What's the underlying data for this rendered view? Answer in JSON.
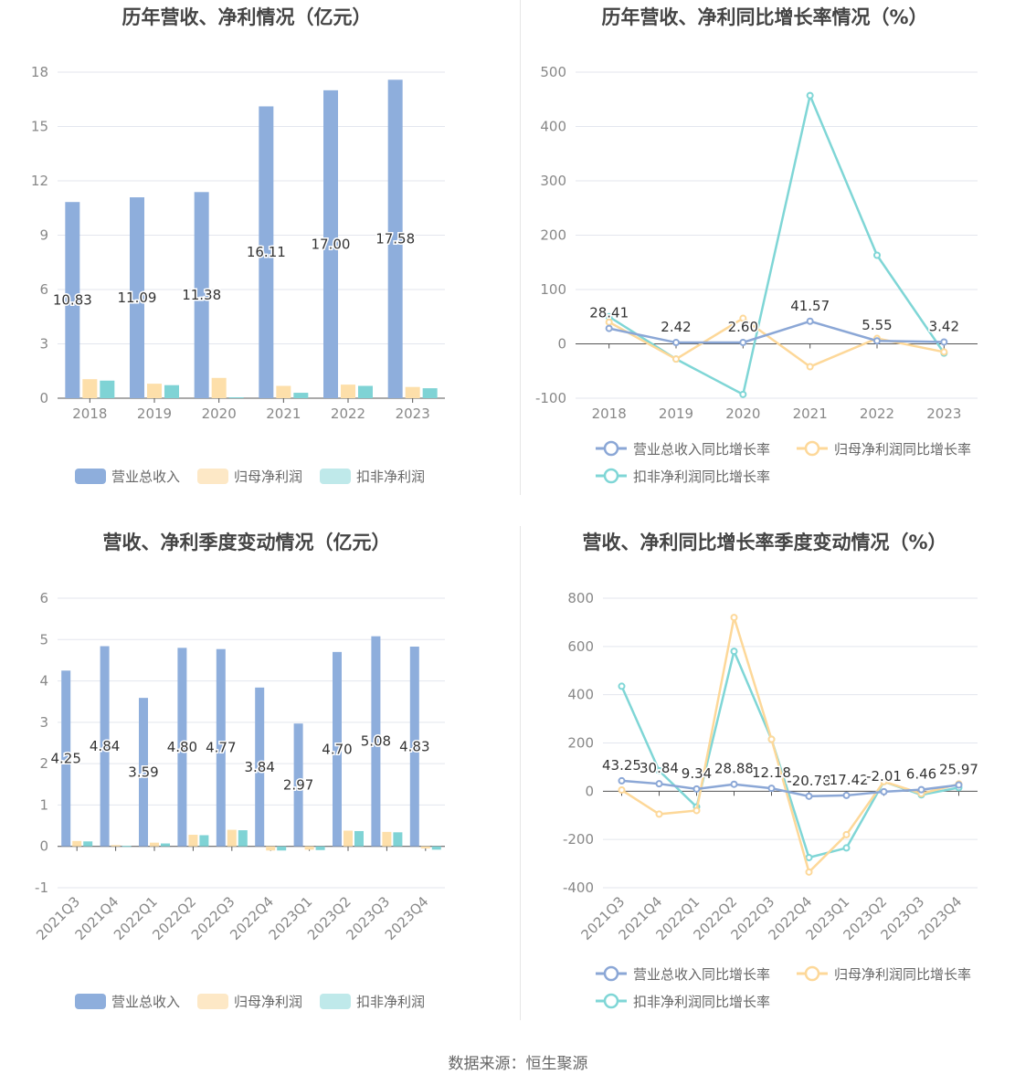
{
  "footer": {
    "source": "数据来源：恒生聚源"
  },
  "colors": {
    "revenue": "#8eaedc",
    "net_profit": "#fddfaa",
    "deducted_profit": "#7fd3d5",
    "revenue_line": "#8ba7d6",
    "net_line": "#fdd899",
    "deducted_line": "#7fd6d6"
  },
  "chart_data": [
    {
      "type": "bar",
      "title": "历年营收、净利情况（亿元）",
      "categories": [
        "2018",
        "2019",
        "2020",
        "2021",
        "2022",
        "2023"
      ],
      "ylim": [
        0,
        18
      ],
      "yticks": [
        0,
        3,
        6,
        9,
        12,
        15,
        18
      ],
      "legend_position": "bottom",
      "series": [
        {
          "name": "营业总收入",
          "values": [
            10.83,
            11.09,
            11.38,
            16.11,
            17.0,
            17.58
          ],
          "labels": [
            "10.83",
            "11.09",
            "11.38",
            "16.11",
            "17.00",
            "17.58"
          ]
        },
        {
          "name": "归母净利润",
          "values": [
            1.05,
            0.8,
            1.12,
            0.68,
            0.75,
            0.62
          ]
        },
        {
          "name": "扣非净利润",
          "values": [
            0.97,
            0.72,
            0.05,
            0.3,
            0.68,
            0.55
          ]
        }
      ]
    },
    {
      "type": "line",
      "title": "历年营收、净利同比增长率情况（%）",
      "categories": [
        "2018",
        "2019",
        "2020",
        "2021",
        "2022",
        "2023"
      ],
      "ylim": [
        -100,
        500
      ],
      "yticks": [
        -100,
        0,
        100,
        200,
        300,
        400,
        500
      ],
      "legend_position": "bottom",
      "series": [
        {
          "name": "营业总收入同比增长率",
          "values": [
            28.41,
            2.42,
            2.6,
            41.57,
            5.55,
            3.42
          ],
          "labels": [
            "28.41",
            "2.42",
            "2.60",
            "41.57",
            "5.55",
            "3.42"
          ]
        },
        {
          "name": "归母净利润同比增长率",
          "values": [
            40,
            -28,
            47,
            -42,
            10,
            -15
          ]
        },
        {
          "name": "扣非净利润同比增长率",
          "values": [
            50,
            -28,
            -93,
            457,
            163,
            -17
          ]
        }
      ]
    },
    {
      "type": "bar",
      "title": "营收、净利季度变动情况（亿元）",
      "categories": [
        "2021Q3",
        "2021Q4",
        "2022Q1",
        "2022Q2",
        "2022Q3",
        "2022Q4",
        "2023Q1",
        "2023Q2",
        "2023Q3",
        "2023Q4"
      ],
      "ylim": [
        -1,
        6
      ],
      "yticks": [
        -1,
        0,
        1,
        2,
        3,
        4,
        5,
        6
      ],
      "legend_position": "bottom",
      "series": [
        {
          "name": "营业总收入",
          "values": [
            4.25,
            4.84,
            3.59,
            4.8,
            4.77,
            3.84,
            2.97,
            4.7,
            5.08,
            4.83
          ],
          "labels": [
            "4.25",
            "4.84",
            "3.59",
            "4.80",
            "4.77",
            "3.84",
            "2.97",
            "4.70",
            "5.08",
            "4.83"
          ]
        },
        {
          "name": "归母净利润",
          "values": [
            0.13,
            0.03,
            0.09,
            0.28,
            0.4,
            -0.1,
            -0.08,
            0.38,
            0.35,
            -0.05
          ]
        },
        {
          "name": "扣非净利润",
          "values": [
            0.12,
            0.01,
            0.07,
            0.27,
            0.39,
            -0.1,
            -0.09,
            0.37,
            0.34,
            -0.08
          ]
        }
      ]
    },
    {
      "type": "line",
      "title": "营收、净利同比增长率季度变动情况（%）",
      "categories": [
        "2021Q3",
        "2021Q4",
        "2022Q1",
        "2022Q2",
        "2022Q3",
        "2022Q4",
        "2023Q1",
        "2023Q2",
        "2023Q3",
        "2023Q4"
      ],
      "ylim": [
        -400,
        800
      ],
      "yticks": [
        -400,
        -200,
        0,
        200,
        400,
        600,
        800
      ],
      "legend_position": "bottom",
      "series": [
        {
          "name": "营业总收入同比增长率",
          "values": [
            43.25,
            30.84,
            9.34,
            28.88,
            12.18,
            -20.78,
            -17.42,
            -2.01,
            6.46,
            25.97
          ],
          "labels": [
            "43.25",
            "30.84",
            "9.34",
            "28.88",
            "12.18",
            "-20.78",
            "-17.42",
            "-2.01",
            "6.46",
            "25.97"
          ]
        },
        {
          "name": "归母净利润同比增长率",
          "values": [
            5,
            -95,
            -80,
            720,
            215,
            -335,
            -180,
            40,
            -10,
            30
          ]
        },
        {
          "name": "扣非净利润同比增长率",
          "values": [
            435,
            85,
            -65,
            580,
            215,
            -275,
            -235,
            40,
            -15,
            15
          ]
        }
      ]
    }
  ]
}
